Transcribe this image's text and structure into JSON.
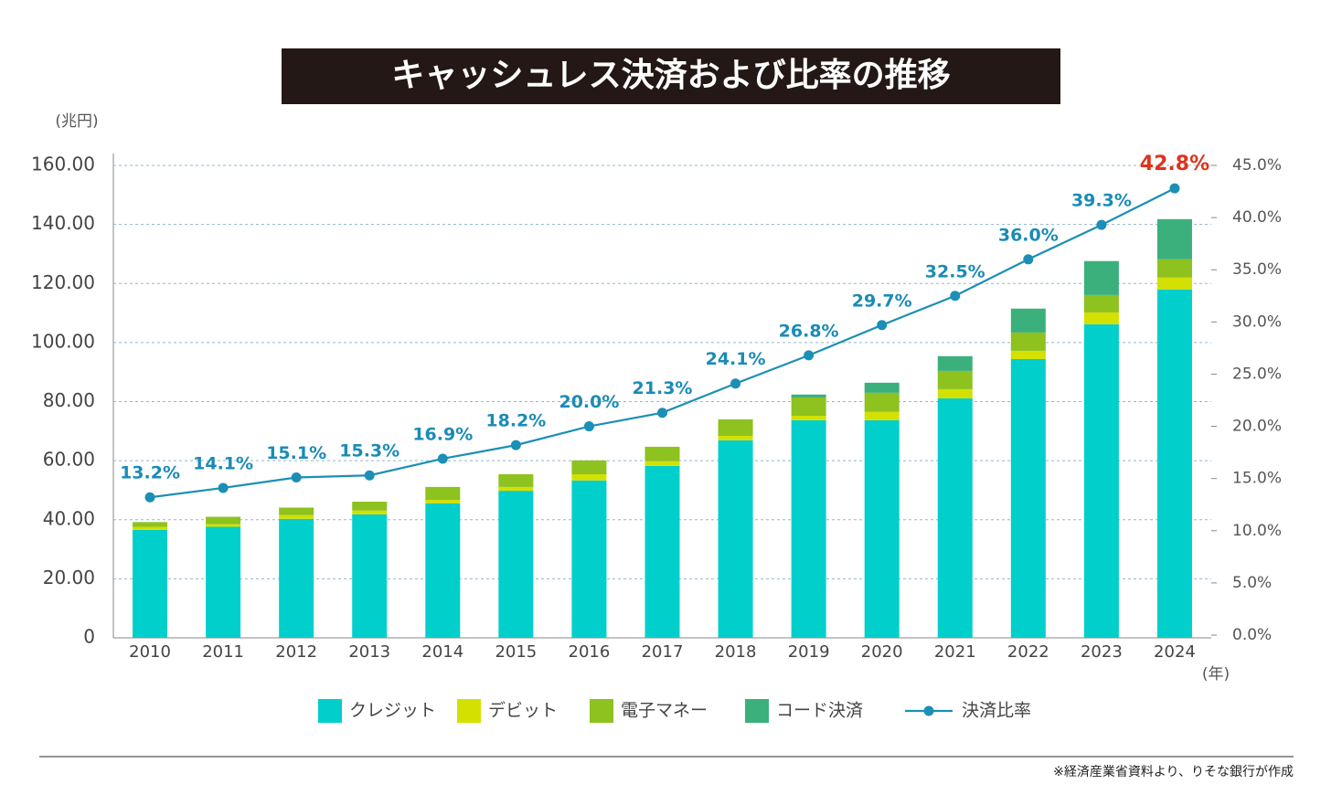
{
  "chart_data": {
    "type": "bar",
    "title": "キャッシュレス決済および比率の推移",
    "y_label": "(兆円)",
    "x_label": "(年)",
    "source": "※経済産業省資料より、りそな銀行が作成",
    "categories": [
      "2010",
      "2011",
      "2012",
      "2013",
      "2014",
      "2015",
      "2016",
      "2017",
      "2018",
      "2019",
      "2020",
      "2021",
      "2022",
      "2023",
      "2024"
    ],
    "stacked": true,
    "grid": true,
    "ylim": [
      0,
      160
    ],
    "yticks": [
      0,
      {
        "value": 20,
        "label": "20.00"
      },
      {
        "value": 40,
        "label": "40.00"
      },
      {
        "value": 60,
        "label": "60.00"
      },
      {
        "value": 80,
        "label": "80.00"
      },
      {
        "value": 100,
        "label": "100.00"
      },
      {
        "value": 120,
        "label": "120.00"
      },
      {
        "value": 140,
        "label": "140.00"
      },
      {
        "value": 160,
        "label": "160.00"
      }
    ],
    "y2lim": [
      0,
      45
    ],
    "y2ticks": [
      {
        "value": 0,
        "label": "0.0%"
      },
      {
        "value": 5,
        "label": "5.0%"
      },
      {
        "value": 10,
        "label": "10.0%"
      },
      {
        "value": 15,
        "label": "15.0%"
      },
      {
        "value": 20,
        "label": "20.0%"
      },
      {
        "value": 25,
        "label": "25.0%"
      },
      {
        "value": 30,
        "label": "30.0%"
      },
      {
        "value": 35,
        "label": "35.0%"
      },
      {
        "value": 40,
        "label": "40.0%"
      },
      {
        "value": 45,
        "label": "45.0%"
      }
    ],
    "series": [
      {
        "name": "クレジット",
        "color": "#00cfcb",
        "values": [
          36.6,
          37.6,
          40.3,
          41.8,
          45.5,
          49.8,
          53.3,
          58.2,
          66.9,
          73.7,
          73.7,
          81.1,
          94.4,
          106.2,
          118.0
        ]
      },
      {
        "name": "デビット",
        "color": "#d4e000",
        "values": [
          1.0,
          0.9,
          1.3,
          1.3,
          1.2,
          1.3,
          2.1,
          1.6,
          1.5,
          1.5,
          2.8,
          3.1,
          2.8,
          4.0,
          4.0
        ]
      },
      {
        "name": "電子マネー",
        "color": "#8dc21f",
        "values": [
          1.6,
          2.5,
          2.5,
          3.0,
          4.4,
          4.3,
          4.7,
          4.9,
          5.6,
          6.2,
          6.5,
          6.2,
          6.2,
          5.9,
          6.2
        ]
      },
      {
        "name": "コード決済",
        "color": "#3bb07c",
        "values": [
          0,
          0,
          0,
          0,
          0,
          0,
          0,
          0,
          0,
          1.0,
          3.4,
          5.0,
          8.1,
          11.5,
          13.6
        ]
      },
      {
        "name": "決済比率",
        "color": "#1b8fb5",
        "type": "line",
        "axis": "y2",
        "values": [
          13.2,
          14.1,
          15.1,
          15.3,
          16.9,
          18.2,
          20.0,
          21.3,
          24.1,
          26.8,
          29.7,
          32.5,
          36.0,
          39.3,
          42.8
        ],
        "value_labels": [
          "13.2%",
          "14.1%",
          "15.1%",
          "15.3%",
          "16.9%",
          "18.2%",
          "20.0%",
          "21.3%",
          "24.1%",
          "26.8%",
          "29.7%",
          "32.5%",
          "36.0%",
          "39.3%",
          "42.8%"
        ]
      }
    ]
  }
}
